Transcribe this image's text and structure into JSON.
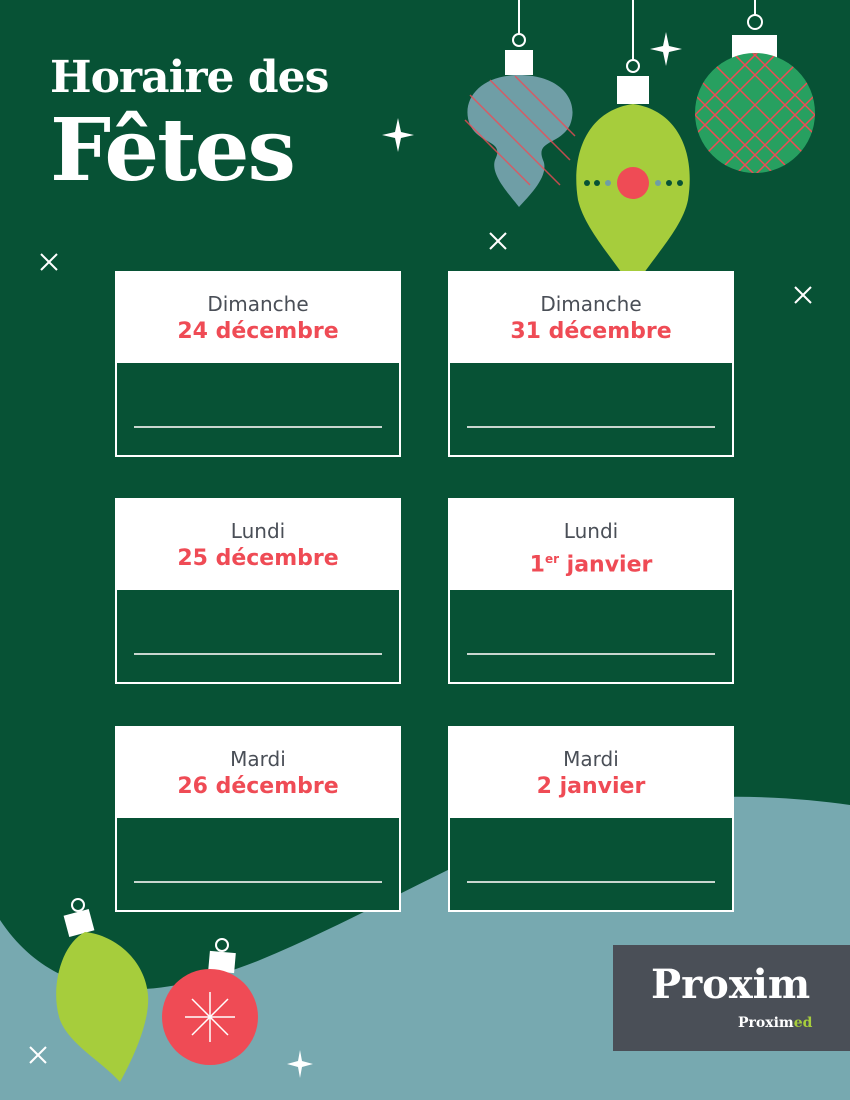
{
  "title": {
    "line1": "Horaire des",
    "line2": "Fêtes"
  },
  "schedule": [
    {
      "day": "Dimanche",
      "date": "24 décembre",
      "hours": ""
    },
    {
      "day": "Dimanche",
      "date": "31 décembre",
      "hours": ""
    },
    {
      "day": "Lundi",
      "date": "25 décembre",
      "hours": ""
    },
    {
      "day": "Lundi",
      "date_num": "1",
      "date_sup": "er",
      "date_rest": " janvier",
      "hours": ""
    },
    {
      "day": "Mardi",
      "date": "26 décembre",
      "hours": ""
    },
    {
      "day": "Mardi",
      "date": "2 janvier",
      "hours": ""
    }
  ],
  "logo": {
    "main": "Proxim",
    "sub_a": "Prox",
    "sub_b": "im",
    "sub_c": "ed"
  },
  "colors": {
    "background": "#075235",
    "wave": "#77a9b0",
    "accent_red": "#ef4b55",
    "accent_green": "#a6cd3c",
    "logo_bg": "#4a4f57"
  }
}
